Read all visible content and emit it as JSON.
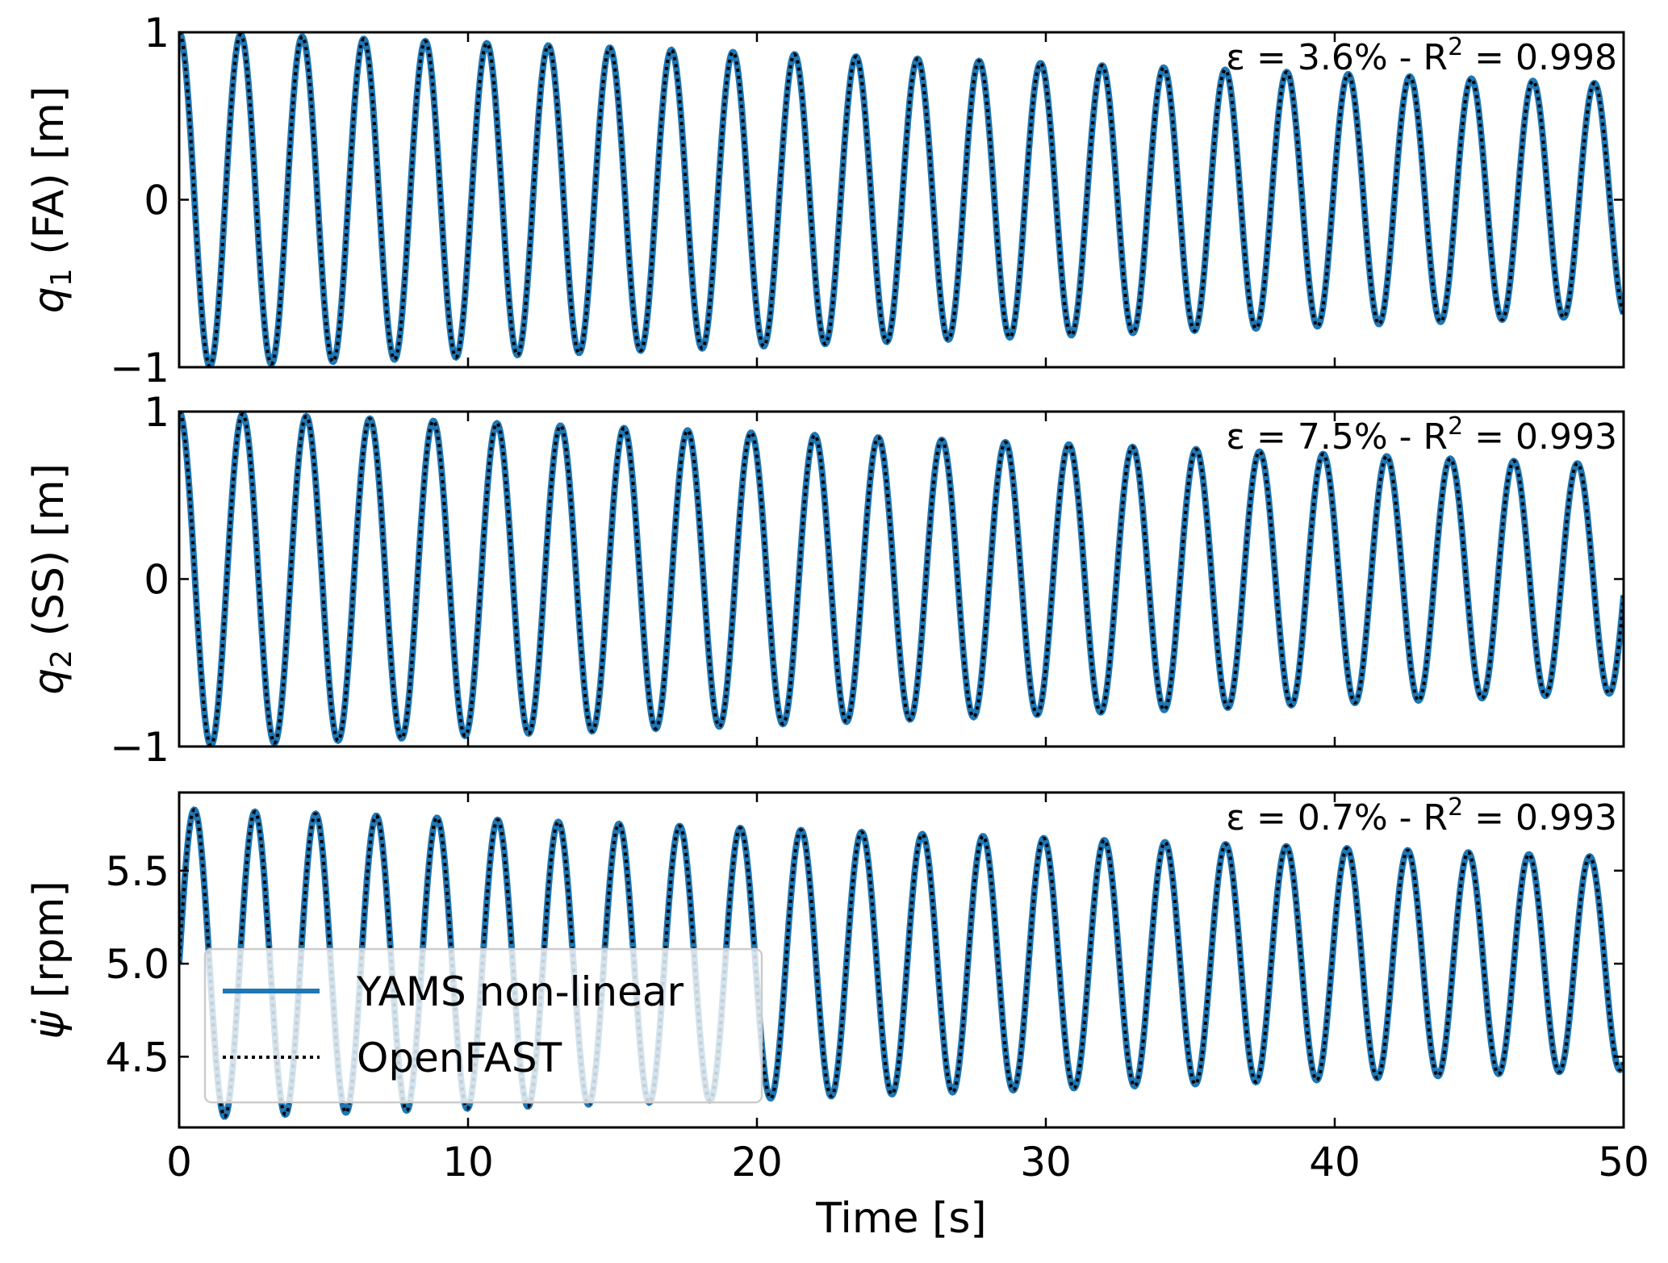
{
  "chart_data": [
    {
      "type": "line",
      "panel": "q1",
      "ylabel_prefix": "q",
      "ylabel_sub": "1",
      "ylabel_suffix": " (FA) [m]",
      "xlim": [
        0,
        50
      ],
      "ylim": [
        -1,
        1
      ],
      "yticks": [
        -1,
        0,
        1
      ],
      "ytick_labels": [
        "−1",
        "0",
        "1"
      ],
      "xticks": [
        0,
        10,
        20,
        30,
        40,
        50
      ],
      "annotation_prefix": "ε = 3.6% - R",
      "annotation_sup": "2",
      "annotation_suffix": " = 0.998",
      "signal": {
        "offset": 0,
        "period_s": 2.13,
        "amplitude_start": 1.0,
        "amplitude_end": 0.69,
        "phase": "cos"
      },
      "series": [
        {
          "name": "YAMS non-linear",
          "color": "#1f77b4",
          "style": "solid"
        },
        {
          "name": "OpenFAST",
          "color": "#000000",
          "style": "dotted"
        }
      ]
    },
    {
      "type": "line",
      "panel": "q2",
      "ylabel_prefix": "q",
      "ylabel_sub": "2",
      "ylabel_suffix": " (SS) [m]",
      "xlim": [
        0,
        50
      ],
      "ylim": [
        -1,
        1
      ],
      "yticks": [
        -1,
        0,
        1
      ],
      "ytick_labels": [
        "−1",
        "0",
        "1"
      ],
      "xticks": [
        0,
        10,
        20,
        30,
        40,
        50
      ],
      "annotation_prefix": "ε = 7.5% - R",
      "annotation_sup": "2",
      "annotation_suffix": " = 0.993",
      "signal": {
        "offset": 0,
        "period_s": 2.2,
        "amplitude_start": 1.0,
        "amplitude_end": 0.68,
        "phase": "cos"
      },
      "series": [
        {
          "name": "YAMS non-linear",
          "color": "#1f77b4",
          "style": "solid"
        },
        {
          "name": "OpenFAST",
          "color": "#000000",
          "style": "dotted"
        }
      ]
    },
    {
      "type": "line",
      "panel": "psi_dot",
      "ylabel_prefix": "ψ̇",
      "ylabel_sub": "",
      "ylabel_suffix": " [rpm]",
      "xlim": [
        0,
        50
      ],
      "ylim": [
        4.12,
        5.92
      ],
      "yticks": [
        4.5,
        5.0,
        5.5
      ],
      "ytick_labels": [
        "4.5",
        "5.0",
        "5.5"
      ],
      "xticks": [
        0,
        10,
        20,
        30,
        40,
        50
      ],
      "xtick_labels": [
        "0",
        "10",
        "20",
        "30",
        "40",
        "50"
      ],
      "xlabel": "Time [s]",
      "annotation_prefix": "ε = 0.7% - R",
      "annotation_sup": "2",
      "annotation_suffix": " = 0.993",
      "signal": {
        "offset": 5.0,
        "period_s": 2.1,
        "amplitude_start": 0.83,
        "amplitude_end": 0.57,
        "phase": "sin"
      },
      "series": [
        {
          "name": "YAMS non-linear",
          "color": "#1f77b4",
          "style": "solid"
        },
        {
          "name": "OpenFAST",
          "color": "#000000",
          "style": "dotted"
        }
      ],
      "legend": {
        "placement": "lower-left",
        "entries": [
          "YAMS non-linear",
          "OpenFAST"
        ]
      }
    }
  ]
}
